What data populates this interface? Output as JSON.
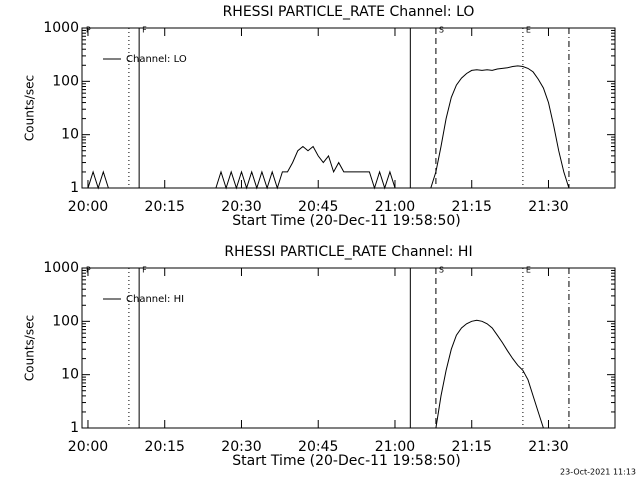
{
  "chart_data": [
    {
      "type": "line",
      "title": "RHESSI PARTICLE_RATE Channel: LO",
      "xlabel": "Start Time (20-Dec-11 19:58:50)",
      "ylabel": "Counts/sec",
      "log_y": true,
      "ylim": [
        1,
        1000
      ],
      "yticks": [
        1,
        10,
        100,
        1000
      ],
      "xlim": [
        "19:58:50",
        "21:43"
      ],
      "xticks": [
        "20:00",
        "20:15",
        "20:30",
        "20:45",
        "21:00",
        "21:15",
        "21:30"
      ],
      "legend": "top-left",
      "vlines": [
        {
          "x": "19:59",
          "style": "none",
          "label": "P"
        },
        {
          "x": "20:08",
          "style": "dotted"
        },
        {
          "x": "20:10",
          "style": "solid",
          "label": "F"
        },
        {
          "x": "21:03",
          "style": "solid"
        },
        {
          "x": "21:08",
          "style": "dashed",
          "label": "S"
        },
        {
          "x": "21:25",
          "style": "dotted",
          "label": "E"
        },
        {
          "x": "21:34",
          "style": "dashdot"
        }
      ],
      "x": [
        "20:00",
        "20:01",
        "20:02",
        "20:03",
        "20:04",
        "20:15",
        "20:25",
        "20:26",
        "20:27",
        "20:28",
        "20:29",
        "20:30",
        "20:31",
        "20:32",
        "20:33",
        "20:34",
        "20:35",
        "20:36",
        "20:37",
        "20:38",
        "20:39",
        "20:40",
        "20:41",
        "20:42",
        "20:43",
        "20:44",
        "20:45",
        "20:46",
        "20:47",
        "20:48",
        "20:49",
        "20:50",
        "20:51",
        "20:52",
        "20:53",
        "20:54",
        "20:55",
        "20:56",
        "20:57",
        "20:58",
        "20:59",
        "21:00",
        "21:04",
        "21:07",
        "21:08",
        "21:09",
        "21:10",
        "21:11",
        "21:12",
        "21:13",
        "21:14",
        "21:15",
        "21:16",
        "21:17",
        "21:18",
        "21:19",
        "21:20",
        "21:21",
        "21:22",
        "21:23",
        "21:24",
        "21:25",
        "21:26",
        "21:27",
        "21:28",
        "21:29",
        "21:30",
        "21:31",
        "21:32",
        "21:33",
        "21:34"
      ],
      "series": [
        {
          "name": "Channel: LO",
          "color": "#000000",
          "values": [
            1,
            2,
            1,
            2,
            1,
            null,
            1,
            2,
            1,
            2,
            1,
            2,
            1,
            2,
            1,
            2,
            1,
            2,
            1,
            2,
            2,
            3,
            5,
            6,
            5,
            6,
            4,
            3,
            4,
            2,
            3,
            2,
            2,
            2,
            2,
            2,
            2,
            1,
            2,
            1,
            2,
            1,
            null,
            1,
            2,
            6,
            20,
            50,
            85,
            115,
            140,
            160,
            165,
            160,
            165,
            160,
            170,
            175,
            180,
            190,
            195,
            190,
            175,
            150,
            110,
            75,
            40,
            15,
            5,
            2,
            1
          ]
        }
      ]
    },
    {
      "type": "line",
      "title": "RHESSI PARTICLE_RATE Channel: HI",
      "xlabel": "Start Time (20-Dec-11 19:58:50)",
      "ylabel": "Counts/sec",
      "log_y": true,
      "ylim": [
        1,
        1000
      ],
      "yticks": [
        1,
        10,
        100,
        1000
      ],
      "xlim": [
        "19:58:50",
        "21:43"
      ],
      "xticks": [
        "20:00",
        "20:15",
        "20:30",
        "20:45",
        "21:00",
        "21:15",
        "21:30"
      ],
      "legend": "top-left",
      "vlines": [
        {
          "x": "19:59",
          "style": "none",
          "label": "P"
        },
        {
          "x": "20:08",
          "style": "dotted"
        },
        {
          "x": "20:10",
          "style": "solid",
          "label": "F"
        },
        {
          "x": "21:03",
          "style": "solid"
        },
        {
          "x": "21:08",
          "style": "dashed",
          "label": "S"
        },
        {
          "x": "21:25",
          "style": "dotted",
          "label": "E"
        },
        {
          "x": "21:34",
          "style": "dashdot"
        }
      ],
      "x": [
        "21:08",
        "21:09",
        "21:10",
        "21:11",
        "21:12",
        "21:13",
        "21:14",
        "21:15",
        "21:16",
        "21:17",
        "21:18",
        "21:19",
        "21:20",
        "21:21",
        "21:22",
        "21:23",
        "21:24",
        "21:25",
        "21:26",
        "21:27",
        "21:28",
        "21:29"
      ],
      "series": [
        {
          "name": "Channel: HI",
          "color": "#000000",
          "values": [
            1,
            4,
            12,
            30,
            55,
            75,
            90,
            100,
            105,
            100,
            90,
            75,
            55,
            40,
            28,
            20,
            15,
            12,
            8,
            4,
            2,
            1
          ]
        }
      ]
    }
  ],
  "footer": "23-Oct-2021 11:13"
}
